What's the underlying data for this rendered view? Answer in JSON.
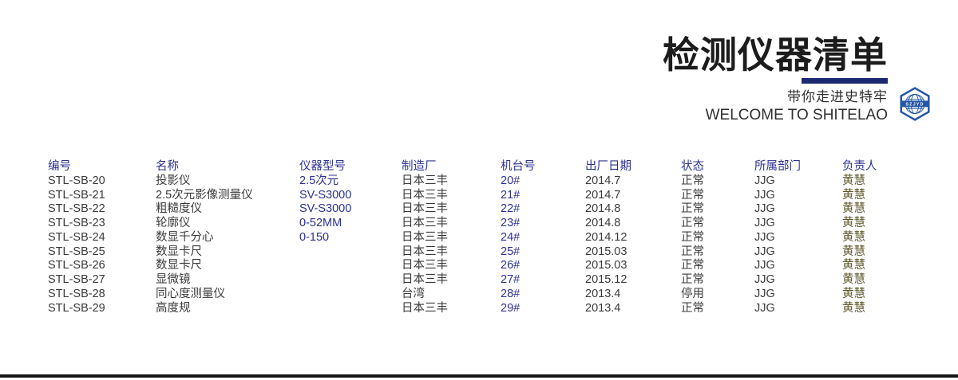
{
  "header": {
    "title": "检测仪器清单",
    "tagline_zh": "带你走进史特牢",
    "tagline_en": "WELCOME TO SHITELAO",
    "logo_text": "SZJYD"
  },
  "colors": {
    "accent_navy": "#2d3192",
    "divider_navy": "#1b2a70",
    "logo_blue": "#2456a6",
    "owner_olive": "#5a5426",
    "body_text": "#3a3a3a",
    "bottom_bar": "#141414"
  },
  "table": {
    "columns": [
      {
        "key": "id",
        "label": "编号",
        "style": "plain"
      },
      {
        "key": "name",
        "label": "名称",
        "style": "plain"
      },
      {
        "key": "model",
        "label": "仪器型号",
        "style": "accent"
      },
      {
        "key": "manufacturer",
        "label": "制造厂",
        "style": "plain"
      },
      {
        "key": "machine_no",
        "label": "机台号",
        "style": "accent"
      },
      {
        "key": "factory_date",
        "label": "出厂日期",
        "style": "plain"
      },
      {
        "key": "status",
        "label": "状态",
        "style": "plain"
      },
      {
        "key": "department",
        "label": "所属部门",
        "style": "plain"
      },
      {
        "key": "owner",
        "label": "负责人",
        "style": "owner"
      }
    ],
    "rows": [
      [
        "STL-SB-20",
        "投影仪",
        "2.5次元",
        "日本三丰",
        "20#",
        "2014.7",
        "正常",
        "JJG",
        "黄慧"
      ],
      [
        "STL-SB-21",
        "2.5次元影像测量仪",
        "SV-S3000",
        "日本三丰",
        "21#",
        "2014.7",
        "正常",
        "JJG",
        "黄慧"
      ],
      [
        "STL-SB-22",
        "粗糙度仪",
        "SV-S3000",
        "日本三丰",
        "22#",
        "2014.8",
        "正常",
        "JJG",
        "黄慧"
      ],
      [
        "STL-SB-23",
        "轮廓仪",
        "0-52MM",
        "日本三丰",
        "23#",
        "2014.8",
        "正常",
        "JJG",
        "黄慧"
      ],
      [
        "STL-SB-24",
        "数显千分心",
        "0-150",
        "日本三丰",
        "24#",
        "2014.12",
        "正常",
        "JJG",
        "黄慧"
      ],
      [
        "STL-SB-25",
        "数显卡尺",
        "",
        "日本三丰",
        "25#",
        "2015.03",
        "正常",
        "JJG",
        "黄慧"
      ],
      [
        "STL-SB-26",
        "数显卡尺",
        "",
        "日本三丰",
        "26#",
        "2015.03",
        "正常",
        "JJG",
        "黄慧"
      ],
      [
        "STL-SB-27",
        "显微镜",
        "",
        "日本三丰",
        "27#",
        "2015.12",
        "正常",
        "JJG",
        "黄慧"
      ],
      [
        "STL-SB-28",
        "同心度测量仪",
        "",
        "台湾",
        "28#",
        "2013.4",
        "停用",
        "JJG",
        "黄慧"
      ],
      [
        "STL-SB-29",
        "高度规",
        "",
        "日本三丰",
        "29#",
        "2013.4",
        "正常",
        "JJG",
        "黄慧"
      ]
    ]
  }
}
